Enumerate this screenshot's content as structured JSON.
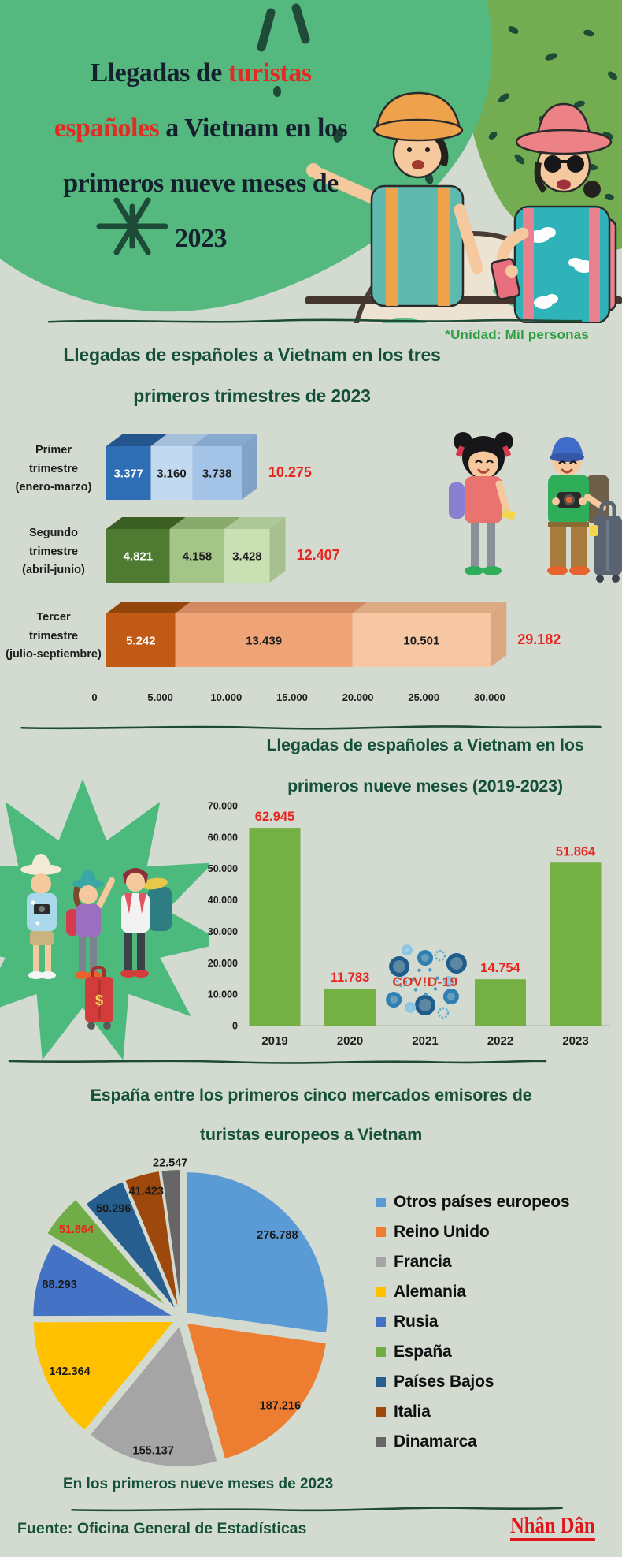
{
  "page_background": "#d3dacf",
  "colors": {
    "background": "#d3dacf",
    "header_blob_green": "#54b87f",
    "header_patch_olive": "#73ac51",
    "dark_green_ink": "#1e4a38",
    "heading_green": "#14503a",
    "unit_green": "#2e9e44",
    "value_red": "#e8251f",
    "title_red": "#e52a23",
    "title_dark": "#15202e",
    "logo_red": "#e0161c"
  },
  "header": {
    "title_lines": [
      [
        {
          "t": "Llegadas de "
        },
        {
          "t": "turistas",
          "red": true
        }
      ],
      [
        {
          "t": "españoles",
          "red": true
        },
        {
          "t": " a Vietnam en los"
        }
      ],
      [
        {
          "t": "primeros nueve meses de"
        }
      ],
      [
        {
          "t": "2023"
        }
      ]
    ]
  },
  "unit_note": "*Unidad: Mil personas",
  "chart_data": [
    {
      "id": "quarterly-stacked-bar",
      "type": "bar",
      "orientation": "horizontal",
      "stacked": true,
      "style": "3d",
      "title_line1": "Llegadas de españoles a Vietnam en los tres",
      "title_line2": "primeros trimestres de 2023",
      "unit": "Mil personas",
      "xlim": [
        0,
        30000
      ],
      "x_ticks": [
        {
          "v": 0,
          "label": "0"
        },
        {
          "v": 5000,
          "label": "5.000"
        },
        {
          "v": 10000,
          "label": "10.000"
        },
        {
          "v": 15000,
          "label": "15.000"
        },
        {
          "v": 20000,
          "label": "20.000"
        },
        {
          "v": 25000,
          "label": "25.000"
        },
        {
          "v": 30000,
          "label": "30.000"
        }
      ],
      "rows": [
        {
          "label_lines": [
            "Primer",
            "trimestre",
            "(enero-marzo)"
          ],
          "values": [
            3377,
            3160,
            3738
          ],
          "displays": [
            "3.377",
            "3.160",
            "3.738"
          ],
          "total": 10275,
          "total_display": "10.275",
          "palette": {
            "front": [
              "#2f6db4",
              "#c3d9ef",
              "#a3c4e6"
            ],
            "top": [
              "#24568d",
              "#a4bfd9",
              "#88a9cf"
            ],
            "side": "#7fa3c9"
          }
        },
        {
          "label_lines": [
            "Segundo",
            "trimestre",
            "(abril-junio)"
          ],
          "values": [
            4821,
            4158,
            3428
          ],
          "displays": [
            "4.821",
            "4.158",
            "3.428"
          ],
          "total": 12407,
          "total_display": "12.407",
          "palette": {
            "front": [
              "#4e7a31",
              "#a3c587",
              "#c9e0b3"
            ],
            "top": [
              "#3b5e24",
              "#88ab6d",
              "#aec999"
            ],
            "side": "#a7c18e"
          }
        },
        {
          "label_lines": [
            "Tercer",
            "trimestre",
            "(julio-septiembre)"
          ],
          "values": [
            5242,
            13439,
            10501
          ],
          "displays": [
            "5.242",
            "13.439",
            "10.501"
          ],
          "total": 29182,
          "total_display": "29.182",
          "palette": {
            "front": [
              "#c05a14",
              "#efa478",
              "#f6c7a2"
            ],
            "top": [
              "#93450c",
              "#d48a60",
              "#dcab84"
            ],
            "side": "#daa77f"
          }
        }
      ]
    },
    {
      "id": "yearly-bar",
      "type": "bar",
      "title_line1": "Llegadas de españoles a Vietnam en los",
      "title_line2": "primeros nueve meses (2019-2023)",
      "categories": [
        "2019",
        "2020",
        "2021",
        "2022",
        "2023"
      ],
      "values": [
        62945,
        11783,
        null,
        14754,
        51864
      ],
      "value_displays": [
        "62.945",
        "11.783",
        "",
        "14.754",
        "51.864"
      ],
      "annotation_2021": "COV!D-19",
      "bar_color": "#74b044",
      "ylim": [
        0,
        70000
      ],
      "y_ticks": [
        {
          "v": 0,
          "label": "0"
        },
        {
          "v": 10000,
          "label": "10.000"
        },
        {
          "v": 20000,
          "label": "20.000"
        },
        {
          "v": 30000,
          "label": "30.000"
        },
        {
          "v": 40000,
          "label": "40.000"
        },
        {
          "v": 50000,
          "label": "50.000"
        },
        {
          "v": 60000,
          "label": "60.000"
        },
        {
          "v": 70000,
          "label": "70.000"
        }
      ]
    },
    {
      "id": "europe-pie",
      "type": "pie",
      "title_line1": "España entre los primeros cinco mercados emisores de",
      "title_line2": "turistas europeos a Vietnam",
      "caption": "En los primeros nueve meses de 2023",
      "legend_position": "right",
      "slices": [
        {
          "label": "Otros países europeos",
          "value": 276788,
          "display": "276.788",
          "color": "#5b9bd5",
          "label_r": 0.9
        },
        {
          "label": "Reino Unido",
          "value": 187216,
          "display": "187.216",
          "color": "#ed7d31",
          "label_r": 0.93
        },
        {
          "label": "Francia",
          "value": 155137,
          "display": "155.137",
          "color": "#a5a5a5",
          "label_r": 0.95
        },
        {
          "label": "Alemania",
          "value": 142364,
          "display": "142.364",
          "color": "#ffc000",
          "label_r": 0.87
        },
        {
          "label": "Rusia",
          "value": 88293,
          "display": "88.293",
          "color": "#4472c4",
          "label_r": 0.89
        },
        {
          "label": "España",
          "value": 51864,
          "display": "51.864",
          "color": "#70ad47",
          "label_r": 0.97,
          "label_color": "#e8251f",
          "explode": 22
        },
        {
          "label": "Países Bajos",
          "value": 50296,
          "display": "50.296",
          "color": "#265f8f",
          "label_r": 0.91
        },
        {
          "label": "Italia",
          "value": 41423,
          "display": "41.423",
          "color": "#9e480e",
          "label_r": 0.93
        },
        {
          "label": "Dinamarca",
          "value": 22547,
          "display": "22.547",
          "color": "#666666",
          "label_r": 1.1
        }
      ]
    }
  ],
  "footer": {
    "source": "Fuente: Oficina General de Estadísticas",
    "logo": "Nhân Dân"
  }
}
